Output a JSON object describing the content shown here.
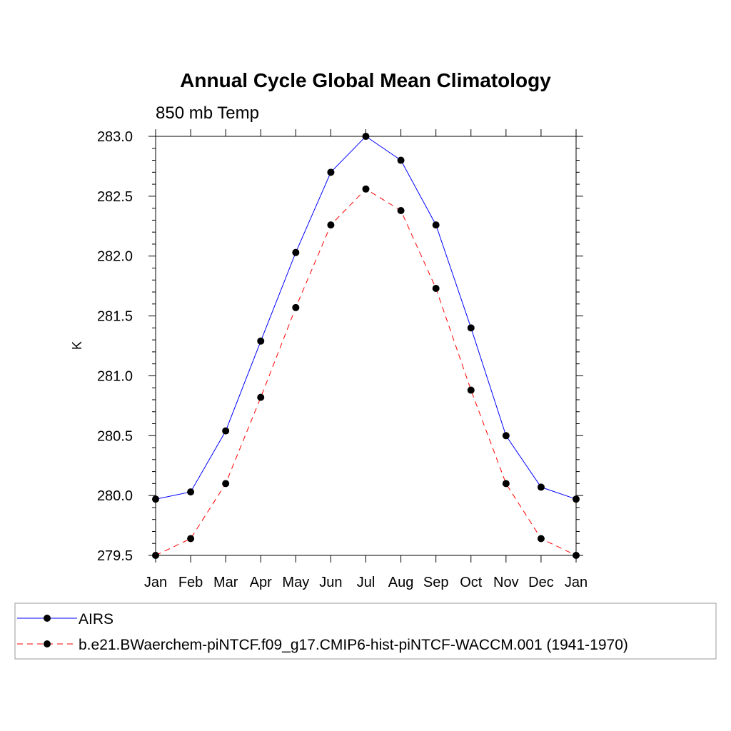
{
  "chart_data": {
    "type": "line",
    "title": "Annual Cycle Global Mean Climatology",
    "subtitle": "850 mb Temp",
    "ylabel": "K",
    "xlabel": "",
    "categories": [
      "Jan",
      "Feb",
      "Mar",
      "Apr",
      "May",
      "Jun",
      "Jul",
      "Aug",
      "Sep",
      "Oct",
      "Nov",
      "Dec",
      "Jan"
    ],
    "ylim": [
      279.5,
      283.0
    ],
    "yticks": [
      "283.0",
      "282.5",
      "282.0",
      "281.5",
      "281.0",
      "280.5",
      "280.0",
      "279.5"
    ],
    "series": [
      {
        "name": "AIRS",
        "color": "#0000ff",
        "dash": "solid",
        "marker": "circle",
        "values": [
          279.97,
          280.03,
          280.54,
          281.29,
          282.03,
          282.7,
          283.0,
          282.8,
          282.26,
          281.4,
          280.5,
          280.07,
          279.97
        ]
      },
      {
        "name": "b.e21.BWaerchem-piNTCF.f09_g17.CMIP6-hist-piNTCF-WACCM.001 (1941-1970)",
        "color": "#ff0000",
        "dash": "dashed",
        "marker": "circle",
        "values": [
          279.5,
          279.64,
          280.1,
          280.82,
          281.57,
          282.26,
          282.56,
          282.38,
          281.73,
          280.88,
          280.1,
          279.64,
          279.5
        ]
      }
    ],
    "legend_position": "bottom"
  }
}
